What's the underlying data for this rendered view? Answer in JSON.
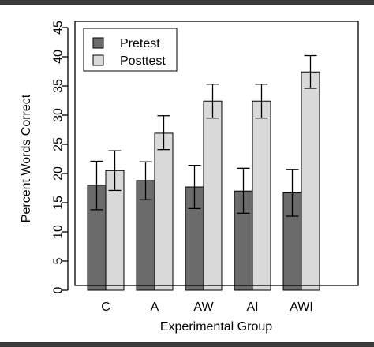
{
  "chart_data": {
    "type": "bar",
    "title": "",
    "xlabel": "Experimental Group",
    "ylabel": "Percent Words Correct",
    "ylim": [
      0,
      45
    ],
    "yticks": [
      0,
      5,
      10,
      15,
      20,
      25,
      30,
      35,
      40,
      45
    ],
    "categories": [
      "C",
      "A",
      "AW",
      "AI",
      "AWI"
    ],
    "series": [
      {
        "name": "Pretest",
        "color": "#6b6b6b",
        "values": [
          18.0,
          18.8,
          17.7,
          17.0,
          16.7
        ],
        "err_low": [
          13.8,
          15.5,
          14.0,
          13.2,
          12.7
        ],
        "err_high": [
          22.1,
          22.0,
          21.4,
          20.9,
          20.7
        ]
      },
      {
        "name": "Posttest",
        "color": "#d9d9d9",
        "values": [
          20.5,
          26.9,
          32.4,
          32.4,
          37.4
        ],
        "err_low": [
          17.1,
          24.1,
          29.5,
          29.5,
          34.6
        ],
        "err_high": [
          23.9,
          29.9,
          35.3,
          35.3,
          40.2
        ]
      }
    ],
    "legend": "top-left",
    "grid": false
  }
}
